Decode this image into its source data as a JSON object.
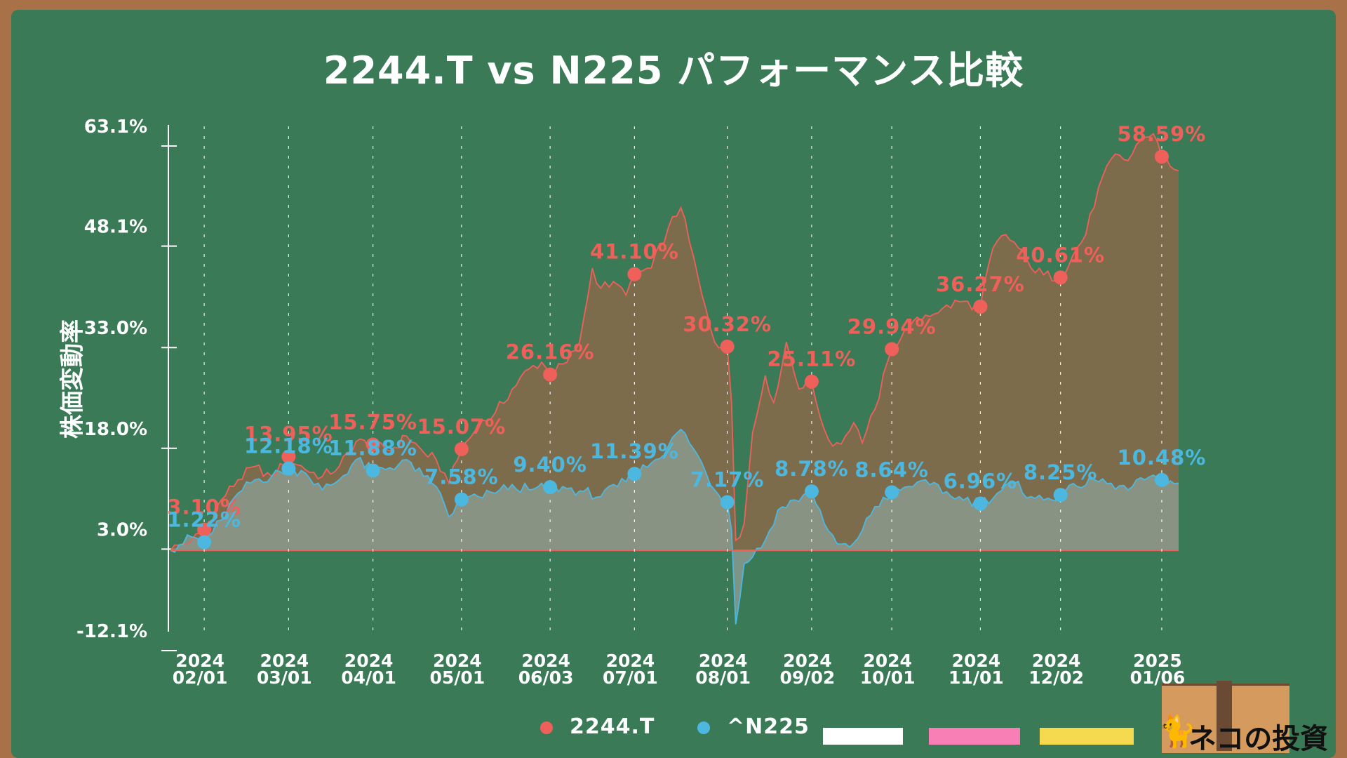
{
  "title": "2244.T vs N225 パフォーマンス比較",
  "chart_data": {
    "type": "area",
    "title": "2244.T vs N225 パフォーマンス比較",
    "ylabel": "株価変動率",
    "xlabel": "",
    "y_ticks": [
      "63.1%",
      "48.1%",
      "33.0%",
      "18.0%",
      "3.0%",
      "-12.1%"
    ],
    "y_tick_values": [
      63.1,
      48.1,
      33.0,
      18.0,
      3.0,
      -12.1
    ],
    "ylim": [
      -12.1,
      63.1
    ],
    "x_ticks": [
      {
        "year": "2024",
        "date": "02/01"
      },
      {
        "year": "2024",
        "date": "03/01"
      },
      {
        "year": "2024",
        "date": "04/01"
      },
      {
        "year": "2024",
        "date": "05/01"
      },
      {
        "year": "2024",
        "date": "06/03"
      },
      {
        "year": "2024",
        "date": "07/01"
      },
      {
        "year": "2024",
        "date": "08/01"
      },
      {
        "year": "2024",
        "date": "09/02"
      },
      {
        "year": "2024",
        "date": "10/01"
      },
      {
        "year": "2024",
        "date": "11/01"
      },
      {
        "year": "2024",
        "date": "12/02"
      },
      {
        "year": "2025",
        "date": "01/06"
      }
    ],
    "x_tick_index": [
      8,
      28,
      48,
      69,
      90,
      110,
      132,
      152,
      171,
      192,
      211,
      235
    ],
    "n_points": 240,
    "series": [
      {
        "name": "2244.T",
        "color": "#f0605a",
        "labels": [
          "3.10%",
          "13.95%",
          "15.75%",
          "15.07%",
          "26.16%",
          "41.10%",
          "30.32%",
          "25.11%",
          "29.94%",
          "36.27%",
          "40.61%",
          "58.59%"
        ],
        "marker_values": [
          3.1,
          13.95,
          15.75,
          15.07,
          26.16,
          41.1,
          30.32,
          25.11,
          29.94,
          36.27,
          40.61,
          58.59
        ],
        "anchors": [
          [
            0,
            0.0
          ],
          [
            2,
            0.8
          ],
          [
            5,
            1.5
          ],
          [
            8,
            3.1
          ],
          [
            12,
            7.5
          ],
          [
            16,
            10.5
          ],
          [
            20,
            12.5
          ],
          [
            24,
            11.0
          ],
          [
            28,
            13.95
          ],
          [
            32,
            12.0
          ],
          [
            36,
            11.0
          ],
          [
            40,
            12.5
          ],
          [
            44,
            16.2
          ],
          [
            48,
            15.75
          ],
          [
            52,
            14.8
          ],
          [
            56,
            17.0
          ],
          [
            60,
            14.6
          ],
          [
            63,
            13.5
          ],
          [
            66,
            10.0
          ],
          [
            69,
            15.07
          ],
          [
            73,
            18.5
          ],
          [
            77,
            20.5
          ],
          [
            81,
            24.0
          ],
          [
            85,
            27.0
          ],
          [
            88,
            28.0
          ],
          [
            90,
            26.16
          ],
          [
            94,
            28.0
          ],
          [
            97,
            31.0
          ],
          [
            100,
            42.0
          ],
          [
            102,
            39.0
          ],
          [
            105,
            40.0
          ],
          [
            108,
            38.0
          ],
          [
            110,
            41.1
          ],
          [
            114,
            42.0
          ],
          [
            118,
            48.0
          ],
          [
            121,
            51.0
          ],
          [
            123,
            46.0
          ],
          [
            126,
            38.0
          ],
          [
            129,
            31.0
          ],
          [
            132,
            30.32
          ],
          [
            133,
            22.0
          ],
          [
            134,
            1.5
          ],
          [
            136,
            4.0
          ],
          [
            138,
            17.5
          ],
          [
            141,
            26.0
          ],
          [
            143,
            22.0
          ],
          [
            146,
            31.0
          ],
          [
            149,
            24.0
          ],
          [
            152,
            25.11
          ],
          [
            155,
            18.0
          ],
          [
            157,
            15.5
          ],
          [
            160,
            17.0
          ],
          [
            162,
            19.0
          ],
          [
            164,
            16.0
          ],
          [
            167,
            21.0
          ],
          [
            171,
            29.94
          ],
          [
            175,
            33.0
          ],
          [
            179,
            35.0
          ],
          [
            183,
            36.0
          ],
          [
            187,
            37.0
          ],
          [
            192,
            36.27
          ],
          [
            195,
            45.0
          ],
          [
            198,
            47.0
          ],
          [
            201,
            45.0
          ],
          [
            204,
            42.0
          ],
          [
            207,
            41.0
          ],
          [
            211,
            40.61
          ],
          [
            214,
            44.0
          ],
          [
            217,
            47.0
          ],
          [
            220,
            54.0
          ],
          [
            224,
            59.0
          ],
          [
            227,
            58.0
          ],
          [
            230,
            61.0
          ],
          [
            233,
            62.0
          ],
          [
            235,
            58.59
          ],
          [
            239,
            56.5
          ]
        ]
      },
      {
        "name": "^N225",
        "color": "#4cb8e0",
        "labels": [
          "1.22%",
          "12.18%",
          "11.88%",
          "7.58%",
          "9.40%",
          "11.39%",
          "7.17%",
          "8.78%",
          "8.64%",
          "6.96%",
          "8.25%",
          "10.48%"
        ],
        "marker_values": [
          1.22,
          12.18,
          11.88,
          7.58,
          9.4,
          11.39,
          7.17,
          8.78,
          8.64,
          6.96,
          8.25,
          10.48
        ],
        "anchors": [
          [
            0,
            0.0
          ],
          [
            2,
            0.8
          ],
          [
            5,
            2.0
          ],
          [
            8,
            1.22
          ],
          [
            12,
            4.5
          ],
          [
            16,
            8.5
          ],
          [
            20,
            10.5
          ],
          [
            24,
            11.0
          ],
          [
            28,
            12.18
          ],
          [
            32,
            11.5
          ],
          [
            36,
            9.0
          ],
          [
            40,
            10.5
          ],
          [
            44,
            13.5
          ],
          [
            48,
            11.88
          ],
          [
            52,
            12.3
          ],
          [
            56,
            13.5
          ],
          [
            60,
            11.0
          ],
          [
            63,
            9.5
          ],
          [
            66,
            5.0
          ],
          [
            69,
            7.58
          ],
          [
            73,
            8.0
          ],
          [
            77,
            8.5
          ],
          [
            81,
            9.8
          ],
          [
            85,
            9.0
          ],
          [
            90,
            9.4
          ],
          [
            94,
            9.2
          ],
          [
            98,
            8.8
          ],
          [
            102,
            8.0
          ],
          [
            106,
            9.5
          ],
          [
            110,
            11.39
          ],
          [
            114,
            13.0
          ],
          [
            118,
            15.5
          ],
          [
            121,
            18.0
          ],
          [
            123,
            16.0
          ],
          [
            126,
            13.0
          ],
          [
            129,
            9.0
          ],
          [
            132,
            7.17
          ],
          [
            133,
            3.0
          ],
          [
            134,
            -11.0
          ],
          [
            136,
            -2.0
          ],
          [
            138,
            -1.0
          ],
          [
            141,
            1.5
          ],
          [
            144,
            6.0
          ],
          [
            148,
            7.5
          ],
          [
            152,
            8.78
          ],
          [
            155,
            4.0
          ],
          [
            158,
            1.0
          ],
          [
            161,
            0.5
          ],
          [
            164,
            3.0
          ],
          [
            167,
            6.5
          ],
          [
            171,
            8.64
          ],
          [
            175,
            9.5
          ],
          [
            179,
            10.5
          ],
          [
            183,
            8.5
          ],
          [
            187,
            8.0
          ],
          [
            192,
            6.96
          ],
          [
            196,
            8.5
          ],
          [
            200,
            10.0
          ],
          [
            204,
            8.0
          ],
          [
            207,
            7.5
          ],
          [
            211,
            8.25
          ],
          [
            215,
            9.5
          ],
          [
            219,
            10.5
          ],
          [
            223,
            10.0
          ],
          [
            227,
            9.0
          ],
          [
            231,
            10.5
          ],
          [
            235,
            10.48
          ],
          [
            239,
            10.0
          ]
        ]
      }
    ],
    "legend": {
      "placement": "bottom",
      "entries": [
        "2244.T",
        "^N225"
      ],
      "swatches": [
        "#ffffff",
        "#f77fb5",
        "#f5d94e"
      ]
    }
  },
  "logo": {
    "text": "ネコの投資",
    "icon": "cat-icon"
  }
}
